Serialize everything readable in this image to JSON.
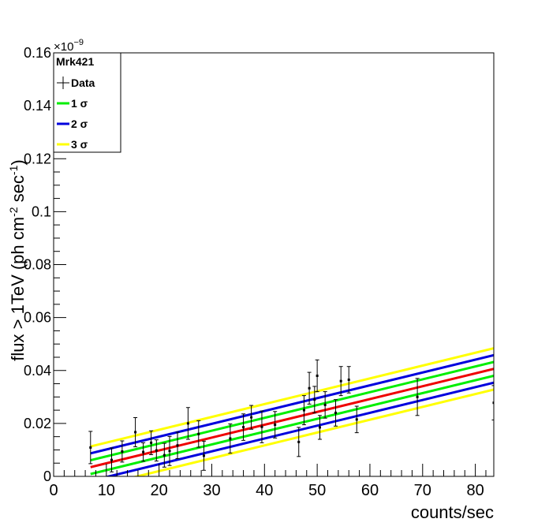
{
  "chart_data": {
    "type": "scatter",
    "title": "Mrk421",
    "xlabel": "counts/sec",
    "ylabel_main": "flux > 1TeV (ph cm",
    "ylabel_sup1": "-2",
    "ylabel_mid": " sec",
    "ylabel_sup2": "-1",
    "ylabel_end": ")",
    "y_exponent_base": "×10",
    "y_exponent_power": "−9",
    "xlim": [
      0,
      83.5
    ],
    "ylim": [
      0,
      0.16
    ],
    "x_ticks": [
      0,
      10,
      20,
      30,
      40,
      50,
      60,
      70,
      80
    ],
    "x_tick_labels": [
      "0",
      "10",
      "20",
      "30",
      "40",
      "50",
      "60",
      "70",
      "80"
    ],
    "y_ticks": [
      0,
      0.02,
      0.04,
      0.06,
      0.08,
      0.1,
      0.12,
      0.14,
      0.16
    ],
    "y_tick_labels": [
      "0",
      "0.02",
      "0.04",
      "0.06",
      "0.08",
      "0.1",
      "0.12",
      "0.14",
      "0.16"
    ],
    "grid": false,
    "legend_position": "top-left",
    "legend": [
      {
        "label": "Data",
        "style": "marker",
        "color": "#000000"
      },
      {
        "label": "1 σ",
        "style": "line",
        "color": "#00ee00"
      },
      {
        "label": "2 σ",
        "style": "line",
        "color": "#0000dd"
      },
      {
        "label": "3 σ",
        "style": "line",
        "color": "#ffff00"
      }
    ],
    "fit": {
      "slope": 0.000485,
      "intercept": 0.0001,
      "color": "#ee0000"
    },
    "bands": [
      {
        "name": "1 σ",
        "offset": 0.0026,
        "color": "#00ee00"
      },
      {
        "name": "2 σ",
        "offset": 0.0052,
        "color": "#0000dd"
      },
      {
        "name": "3 σ",
        "offset": 0.0078,
        "color": "#ffff00"
      }
    ],
    "band_x_range": [
      7,
      83.5
    ],
    "points": [
      {
        "x": 7.0,
        "y": 0.0109,
        "err": 0.0061
      },
      {
        "x": 11.0,
        "y": 0.0062,
        "err": 0.0045
      },
      {
        "x": 13.0,
        "y": 0.0094,
        "err": 0.004
      },
      {
        "x": 15.5,
        "y": 0.0167,
        "err": 0.0055
      },
      {
        "x": 17.0,
        "y": 0.0092,
        "err": 0.0035
      },
      {
        "x": 18.5,
        "y": 0.0127,
        "err": 0.0045
      },
      {
        "x": 19.5,
        "y": 0.0098,
        "err": 0.004
      },
      {
        "x": 21.0,
        "y": 0.008,
        "err": 0.0045
      },
      {
        "x": 22.0,
        "y": 0.0096,
        "err": 0.0055
      },
      {
        "x": 23.5,
        "y": 0.0117,
        "err": 0.005
      },
      {
        "x": 25.5,
        "y": 0.02,
        "err": 0.006
      },
      {
        "x": 27.5,
        "y": 0.016,
        "err": 0.005
      },
      {
        "x": 28.5,
        "y": 0.0078,
        "err": 0.0055
      },
      {
        "x": 33.5,
        "y": 0.0143,
        "err": 0.0055
      },
      {
        "x": 36.0,
        "y": 0.0186,
        "err": 0.005
      },
      {
        "x": 37.5,
        "y": 0.0223,
        "err": 0.0045
      },
      {
        "x": 39.5,
        "y": 0.0187,
        "err": 0.006
      },
      {
        "x": 42.0,
        "y": 0.0195,
        "err": 0.005
      },
      {
        "x": 46.5,
        "y": 0.013,
        "err": 0.0055
      },
      {
        "x": 47.5,
        "y": 0.025,
        "err": 0.0055
      },
      {
        "x": 48.5,
        "y": 0.0333,
        "err": 0.006
      },
      {
        "x": 49.5,
        "y": 0.029,
        "err": 0.005
      },
      {
        "x": 50.0,
        "y": 0.038,
        "err": 0.006
      },
      {
        "x": 50.5,
        "y": 0.0185,
        "err": 0.0045
      },
      {
        "x": 51.5,
        "y": 0.027,
        "err": 0.005
      },
      {
        "x": 53.5,
        "y": 0.024,
        "err": 0.005
      },
      {
        "x": 54.5,
        "y": 0.036,
        "err": 0.0055
      },
      {
        "x": 56.0,
        "y": 0.0365,
        "err": 0.005
      },
      {
        "x": 57.5,
        "y": 0.0215,
        "err": 0.005
      },
      {
        "x": 69.0,
        "y": 0.03,
        "err": 0.007
      },
      {
        "x": 83.5,
        "y": 0.0278,
        "err": 0.0065
      }
    ]
  }
}
